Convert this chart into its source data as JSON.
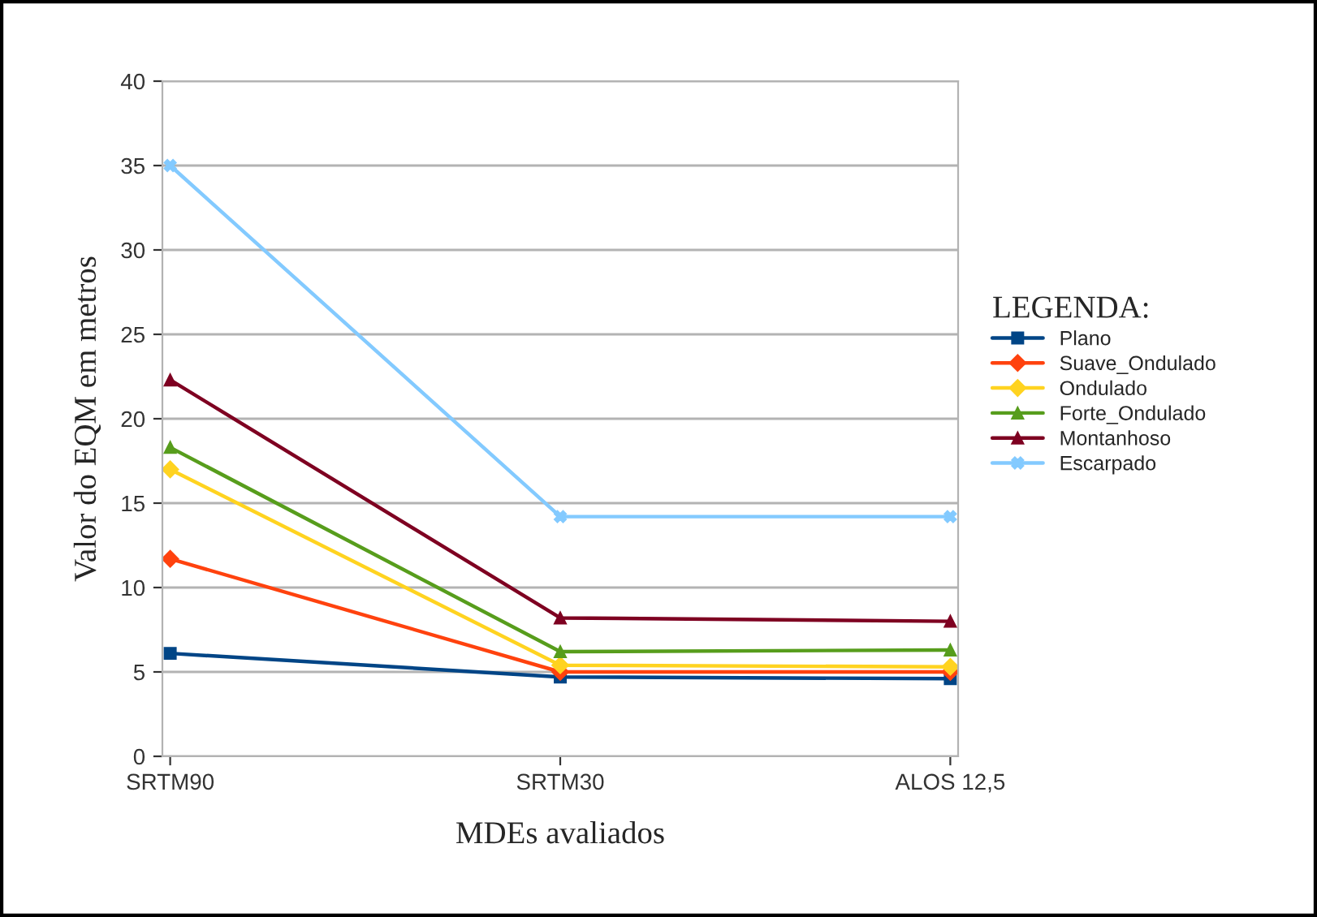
{
  "chart_data": {
    "type": "line",
    "xlabel": "MDEs avaliados",
    "ylabel": "Valor do EQM em metros",
    "legend_title": "LEGENDA:",
    "categories": [
      "SRTM90",
      "SRTM30",
      "ALOS 12,5"
    ],
    "series": [
      {
        "name": "Plano",
        "color": "#004586",
        "marker": "square",
        "values": [
          6.1,
          4.7,
          4.6
        ]
      },
      {
        "name": "Suave_Ondulado",
        "color": "#ff420e",
        "marker": "diamond",
        "values": [
          11.7,
          5.0,
          5.0
        ]
      },
      {
        "name": "Ondulado",
        "color": "#ffd320",
        "marker": "diamond",
        "values": [
          17.0,
          5.4,
          5.3
        ]
      },
      {
        "name": "Forte_Ondulado",
        "color": "#579d1c",
        "marker": "triangle",
        "values": [
          18.3,
          6.2,
          6.3
        ]
      },
      {
        "name": "Montanhoso",
        "color": "#7e0021",
        "marker": "triangle",
        "values": [
          22.3,
          8.2,
          8.0
        ]
      },
      {
        "name": "Escarpado",
        "color": "#83caff",
        "marker": "cross",
        "values": [
          35,
          14.2,
          14.2
        ]
      }
    ],
    "ylim": [
      0,
      40
    ],
    "yticks": [
      0,
      5,
      10,
      15,
      20,
      25,
      30,
      35,
      40
    ],
    "grid": "y",
    "legend": "right"
  }
}
